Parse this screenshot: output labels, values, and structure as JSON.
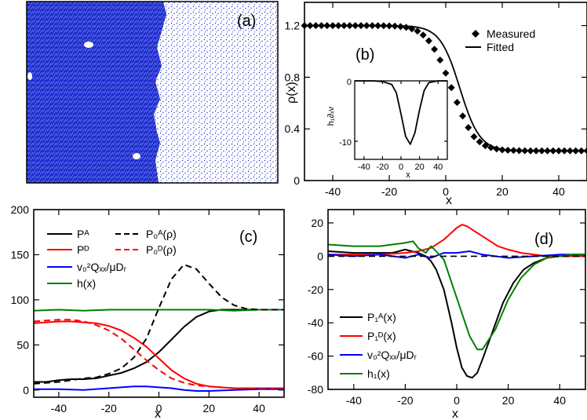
{
  "colors": {
    "black": "#000000",
    "red": "#ff0000",
    "blue": "#0000ff",
    "green": "#008000",
    "particle_blue": "#1f2fd0"
  },
  "chart_data": [
    {
      "type": "image",
      "panel_label": "(a)",
      "description_colors": [
        "#1f2fd0",
        "#ffffff"
      ]
    },
    {
      "type": "scatter+line",
      "panel_label": "(b)",
      "xlabel": "x",
      "ylabel": "ρ(x)",
      "xlim": [
        -50,
        50
      ],
      "ylim": [
        0,
        1.38
      ],
      "xticks": [
        -40,
        -20,
        0,
        20,
        40
      ],
      "yticks": [
        0.0,
        0.4,
        0.8,
        1.2
      ],
      "ytick_labels": [
        "0.0",
        "0.4",
        "0.8",
        "1.2"
      ],
      "legend": [
        "Measured",
        "Fitted"
      ],
      "fit_params": {
        "rho_high": 1.2,
        "rho_low": 0.23,
        "center": 5,
        "width": 7
      },
      "series": [
        {
          "name": "Measured",
          "marker": "diamond",
          "x": [
            -50,
            -48,
            -46,
            -44,
            -42,
            -40,
            -38,
            -36,
            -34,
            -32,
            -30,
            -28,
            -26,
            -24,
            -22,
            -20,
            -18,
            -16,
            -14,
            -12,
            -10,
            -8,
            -6,
            -4,
            -2,
            0,
            2,
            4,
            6,
            8,
            10,
            12,
            14,
            16,
            18,
            20,
            22,
            24,
            26,
            28,
            30,
            32,
            34,
            36,
            38,
            40,
            42,
            44,
            46,
            48,
            50
          ],
          "y": [
            1.2,
            1.2,
            1.2,
            1.2,
            1.2,
            1.2,
            1.2,
            1.2,
            1.2,
            1.2,
            1.2,
            1.2,
            1.2,
            1.199,
            1.199,
            1.198,
            1.196,
            1.192,
            1.186,
            1.175,
            1.157,
            1.127,
            1.082,
            1.017,
            0.933,
            0.832,
            0.72,
            0.605,
            0.5,
            0.41,
            0.34,
            0.3,
            0.27,
            0.255,
            0.245,
            0.238,
            0.235,
            0.233,
            0.232,
            0.231,
            0.23,
            0.23,
            0.23,
            0.23,
            0.23,
            0.23,
            0.23,
            0.23,
            0.23,
            0.23,
            0.23
          ]
        },
        {
          "name": "Fitted",
          "style": "solid"
        }
      ],
      "inset": {
        "xlabel": "x",
        "ylabel": "h₁∂ₓν",
        "xlim": [
          -50,
          50
        ],
        "ylim": [
          -13,
          0
        ],
        "xticks": [
          -40,
          -20,
          0,
          20,
          40
        ],
        "yticks": [
          0,
          -10
        ],
        "x": [
          -50,
          -40,
          -30,
          -20,
          -10,
          -5,
          0,
          5,
          10,
          15,
          20,
          25,
          30,
          40,
          50
        ],
        "y": [
          0,
          0,
          0,
          -0.1,
          -0.6,
          -2.0,
          -5.5,
          -9.2,
          -10.5,
          -8.6,
          -4.8,
          -1.6,
          -0.3,
          0,
          0
        ]
      }
    },
    {
      "type": "line",
      "panel_label": "(c)",
      "xlabel": "x",
      "ylabel": "",
      "xlim": [
        -50,
        50
      ],
      "ylim": [
        -8,
        200
      ],
      "xticks": [
        -40,
        -20,
        0,
        20,
        40
      ],
      "yticks": [
        0,
        50,
        100,
        150,
        200
      ],
      "legend": [
        "Pᴬ",
        "Pᴰ",
        "v₀²Qₓₓ/μDᵣ",
        "h(x)",
        "P₀ᴬ(ρ)",
        "P₀ᴰ(ρ)"
      ],
      "series": [
        {
          "name": "Pᴬ",
          "color": "#000000",
          "style": "solid",
          "x": [
            -50,
            -45,
            -40,
            -35,
            -30,
            -25,
            -20,
            -15,
            -10,
            -5,
            0,
            5,
            10,
            15,
            20,
            25,
            30,
            35,
            40,
            45,
            50
          ],
          "y": [
            9,
            9,
            11,
            12,
            12,
            13,
            16,
            19,
            24,
            31,
            42,
            56,
            70,
            81,
            87,
            89,
            89,
            89,
            89,
            89,
            89
          ]
        },
        {
          "name": "Pᴰ",
          "color": "#ff0000",
          "style": "solid",
          "x": [
            -50,
            -45,
            -40,
            -35,
            -30,
            -25,
            -20,
            -15,
            -10,
            -5,
            0,
            5,
            10,
            15,
            20,
            25,
            30,
            35,
            40,
            45,
            50
          ],
          "y": [
            74,
            75,
            76,
            76,
            75,
            74,
            71,
            66,
            58,
            48,
            35,
            22,
            13,
            7,
            4,
            3,
            2,
            2,
            2,
            2,
            2
          ]
        },
        {
          "name": "v₀²Qₓₓ/μDᵣ",
          "color": "#0000ff",
          "style": "solid",
          "x": [
            -50,
            -40,
            -30,
            -20,
            -15,
            -10,
            -5,
            0,
            5,
            10,
            15,
            20,
            30,
            40,
            50
          ],
          "y": [
            1,
            1,
            0,
            2,
            3,
            4,
            4,
            3,
            2,
            0,
            -1,
            -1,
            0,
            1,
            1
          ]
        },
        {
          "name": "h(x)",
          "color": "#008000",
          "style": "solid",
          "x": [
            -50,
            -40,
            -30,
            -20,
            -10,
            0,
            10,
            20,
            30,
            40,
            50
          ],
          "y": [
            88,
            89,
            88,
            89,
            89,
            89,
            89,
            89,
            88,
            89,
            89
          ]
        },
        {
          "name": "P₀ᴬ(ρ)",
          "color": "#000000",
          "style": "dashed",
          "x": [
            -50,
            -40,
            -30,
            -25,
            -20,
            -15,
            -10,
            -5,
            0,
            5,
            10,
            15,
            20,
            25,
            30,
            35,
            40,
            45,
            50
          ],
          "y": [
            7,
            9,
            13,
            14,
            18,
            24,
            36,
            57,
            91,
            123,
            139,
            134,
            118,
            103,
            94,
            90,
            89,
            89,
            89
          ]
        },
        {
          "name": "P₀ᴰ(ρ)",
          "color": "#ff0000",
          "style": "dashed",
          "x": [
            -50,
            -45,
            -40,
            -35,
            -30,
            -25,
            -20,
            -15,
            -10,
            -5,
            0,
            5,
            10,
            15,
            20,
            25,
            30,
            35,
            40,
            45,
            50
          ],
          "y": [
            76,
            77,
            78,
            78,
            76,
            72,
            66,
            57,
            45,
            33,
            22,
            13,
            8,
            5,
            4,
            3,
            2,
            2,
            2,
            2,
            2
          ]
        }
      ]
    },
    {
      "type": "line",
      "panel_label": "(d)",
      "xlabel": "x",
      "ylabel": "",
      "xlim": [
        -50,
        50
      ],
      "ylim": [
        -80,
        28
      ],
      "xticks": [
        -40,
        -20,
        0,
        20,
        40
      ],
      "yticks": [
        20,
        0,
        -20,
        -40,
        -60,
        -80
      ],
      "legend": [
        "P₁ᴬ(x)",
        "P₁ᴰ(x)",
        "v₀²Qₓₓ/μDᵣ",
        "h₁(x)"
      ],
      "series": [
        {
          "name": "P₁ᴬ(x)",
          "color": "#000000",
          "style": "solid",
          "x": [
            -50,
            -40,
            -30,
            -25,
            -20,
            -15,
            -12,
            -10,
            -8,
            -5,
            -2,
            0,
            2,
            4,
            6,
            8,
            10,
            14,
            18,
            22,
            26,
            30,
            35,
            40,
            45,
            50
          ],
          "y": [
            3,
            2,
            2,
            2,
            4,
            2,
            0,
            -3,
            -8,
            -20,
            -40,
            -55,
            -67,
            -72,
            -73,
            -70,
            -62,
            -45,
            -28,
            -16,
            -8,
            -4,
            -1,
            0,
            1,
            1
          ]
        },
        {
          "name": "P₁ᴰ(x)",
          "color": "#ff0000",
          "style": "solid",
          "x": [
            -50,
            -40,
            -30,
            -20,
            -15,
            -10,
            -5,
            0,
            2,
            4,
            8,
            12,
            16,
            20,
            25,
            30,
            35,
            40,
            45,
            50
          ],
          "y": [
            1,
            1,
            1,
            2,
            3,
            5,
            10,
            17,
            19,
            18,
            14,
            10,
            6,
            4,
            2,
            1,
            0,
            0,
            0,
            0
          ]
        },
        {
          "name": "v₀²Qₓₓ/μDᵣ",
          "color": "#0000ff",
          "style": "solid",
          "x": [
            -50,
            -40,
            -30,
            -20,
            -15,
            -10,
            -5,
            0,
            5,
            10,
            15,
            20,
            30,
            40,
            50
          ],
          "y": [
            1,
            0,
            1,
            -1,
            1,
            -1,
            2,
            2,
            3,
            1,
            0,
            -1,
            0,
            1,
            1
          ]
        },
        {
          "name": "h₁(x)",
          "color": "#008000",
          "style": "solid",
          "x": [
            -50,
            -40,
            -30,
            -25,
            -20,
            -17,
            -15,
            -12,
            -10,
            -8,
            -5,
            0,
            5,
            8,
            10,
            15,
            20,
            25,
            30,
            35,
            40,
            45,
            50
          ],
          "y": [
            7,
            6,
            6,
            7,
            8,
            9,
            5,
            2,
            6,
            3,
            -2,
            -25,
            -48,
            -56,
            -56,
            -44,
            -26,
            -13,
            -5,
            -1,
            0,
            1,
            1
          ]
        },
        {
          "name": "zero",
          "color": "#000000",
          "style": "dashed",
          "x": [
            -50,
            50
          ],
          "y": [
            0,
            0
          ]
        }
      ]
    }
  ]
}
